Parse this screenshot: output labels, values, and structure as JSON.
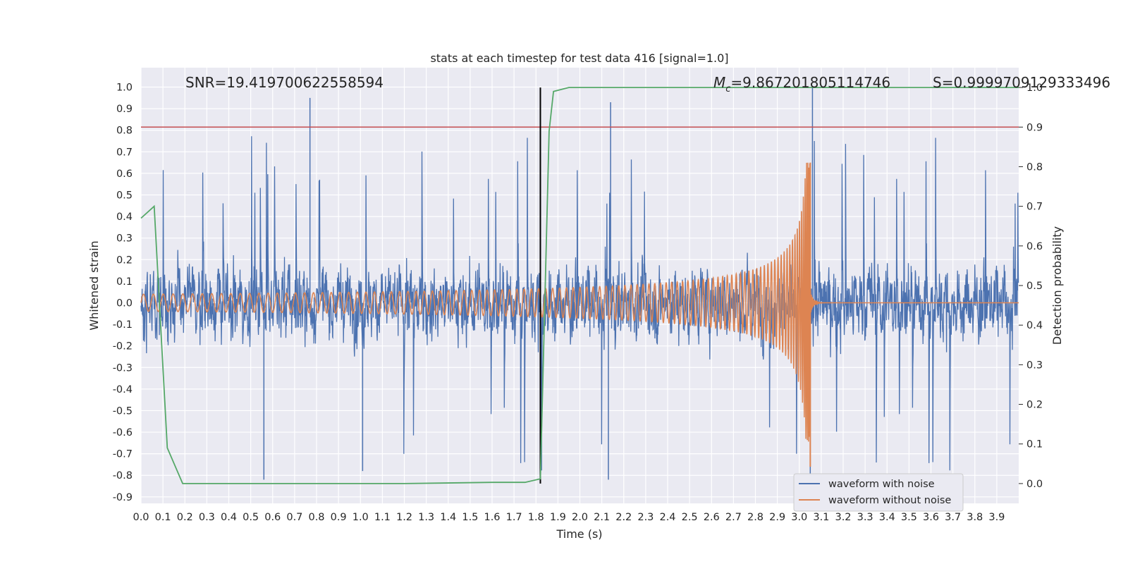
{
  "chart_data": {
    "type": "line",
    "title": "stats at each timestep for test data 416 [signal=1.0]",
    "xlabel": "Time (s)",
    "ylabel_left": "Whitened strain",
    "ylabel_right": "Detection probability",
    "xlim": [
      0.0,
      4.0
    ],
    "ylim_left": [
      -0.93,
      1.09
    ],
    "ylim_right": [
      -0.05,
      1.05
    ],
    "x_ticks": [
      "0.0",
      "0.1",
      "0.2",
      "0.3",
      "0.4",
      "0.5",
      "0.6",
      "0.7",
      "0.8",
      "0.9",
      "1.0",
      "1.1",
      "1.2",
      "1.3",
      "1.4",
      "1.5",
      "1.6",
      "1.7",
      "1.8",
      "1.9",
      "2.0",
      "2.1",
      "2.2",
      "2.3",
      "2.4",
      "2.5",
      "2.6",
      "2.7",
      "2.8",
      "2.9",
      "3.0",
      "3.1",
      "3.2",
      "3.3",
      "3.4",
      "3.5",
      "3.6",
      "3.7",
      "3.8",
      "3.9"
    ],
    "y_ticks_left": [
      "-0.9",
      "-0.8",
      "-0.7",
      "-0.6",
      "-0.5",
      "-0.4",
      "-0.3",
      "-0.2",
      "-0.1",
      "0.0",
      "0.1",
      "0.2",
      "0.3",
      "0.4",
      "0.5",
      "0.6",
      "0.7",
      "0.8",
      "0.9",
      "1.0"
    ],
    "y_ticks_right": [
      "0.0",
      "0.1",
      "0.2",
      "0.3",
      "0.4",
      "0.5",
      "0.6",
      "0.7",
      "0.8",
      "0.9",
      "1.0"
    ],
    "grid": true,
    "annotations": {
      "snr": "SNR=19.419700622558594",
      "mc_symbol": "M",
      "mc_sub": "c",
      "mc_value": "=9.867201805114746",
      "s": "S=0.9999709129333496"
    },
    "threshold_line": {
      "axis": "right",
      "value": 0.9,
      "color": "#c44e52"
    },
    "detection_time_line": {
      "x": 1.82,
      "color": "#000000"
    },
    "series": [
      {
        "name": "waveform with noise",
        "color": "#4c72b0",
        "axis": "left",
        "kind": "noise",
        "typical_amplitude": 0.25,
        "peak_min": -0.82,
        "peak_max": 1.0
      },
      {
        "name": "waveform without noise",
        "color": "#dd8452",
        "axis": "left",
        "kind": "chirp",
        "merger_time": 3.05,
        "start_amplitude": 0.04,
        "peak_max": 0.65,
        "peak_min": -0.76
      },
      {
        "axis": "right",
        "color": "#55a868",
        "kind": "probability",
        "x": [
          0.0,
          0.06,
          0.12,
          0.19,
          0.3,
          0.5,
          0.8,
          1.2,
          1.6,
          1.75,
          1.82,
          1.86,
          1.88,
          1.95,
          2.5,
          3.0,
          3.5,
          4.0
        ],
        "y": [
          0.67,
          0.7,
          0.09,
          0.0,
          0.0,
          0.0,
          0.0,
          0.0,
          0.003,
          0.003,
          0.012,
          0.89,
          0.99,
          1.0,
          1.0,
          1.0,
          1.0,
          1.0
        ]
      }
    ],
    "legend": {
      "placement": "bottom-right",
      "entries": [
        "waveform with noise",
        "waveform without noise"
      ]
    }
  },
  "colors": {
    "plot_background": "#eaeaf2",
    "grid": "#ffffff"
  }
}
